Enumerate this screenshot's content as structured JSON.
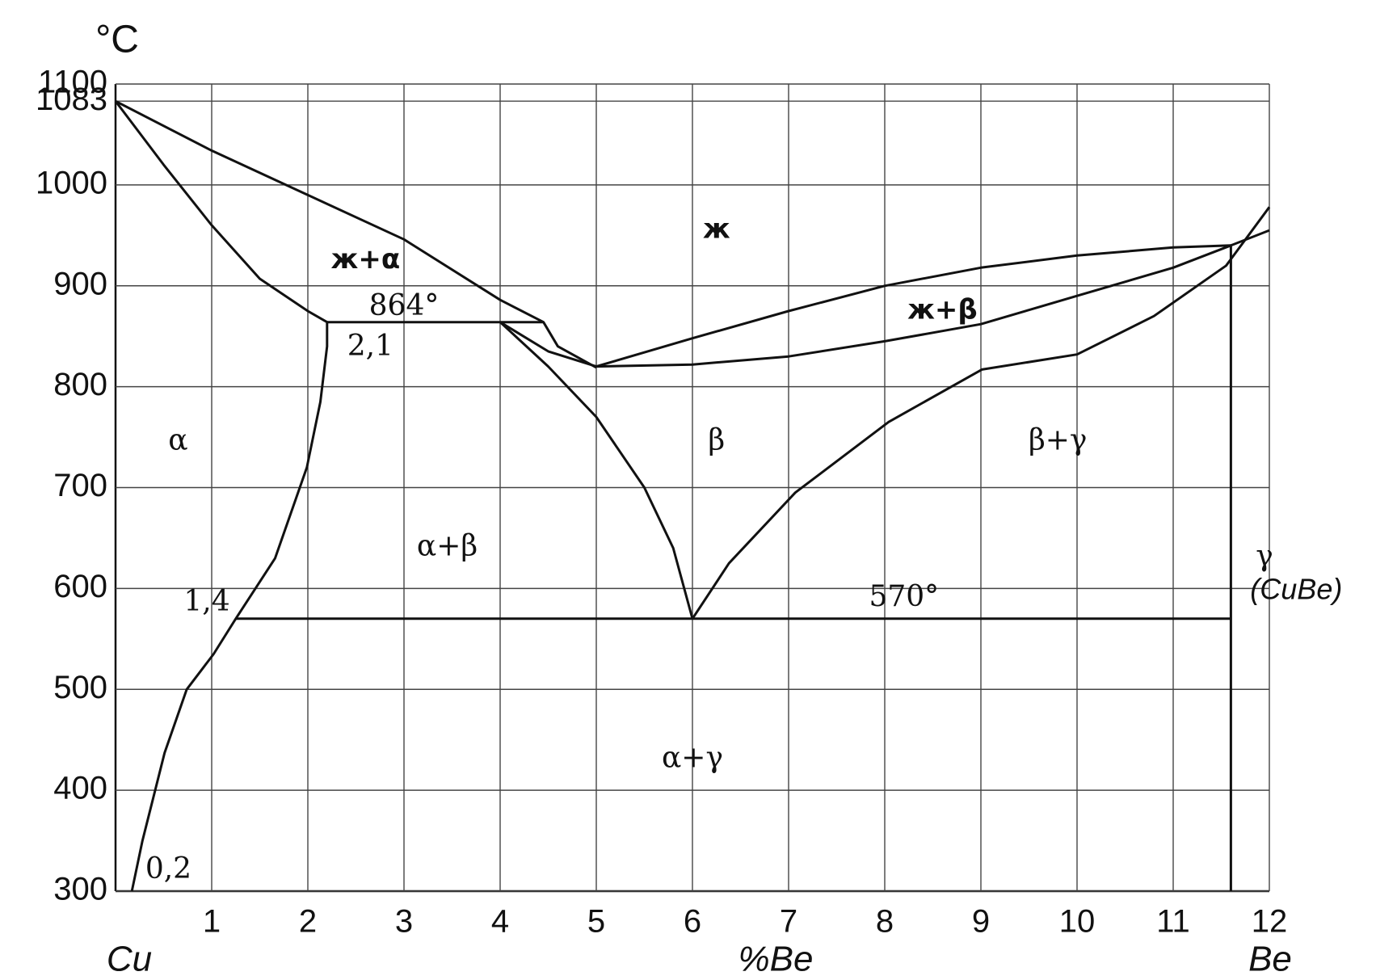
{
  "chart_data": {
    "type": "line",
    "ylabel": "°C",
    "xlabel": "%Be",
    "x_left_label": "Cu",
    "x_right_label": "Be",
    "xlim": [
      0,
      12
    ],
    "ylim": [
      300,
      1100
    ],
    "xticks": [
      1,
      2,
      3,
      4,
      5,
      6,
      7,
      8,
      9,
      10,
      11,
      12
    ],
    "yticks": [
      300,
      400,
      500,
      600,
      700,
      800,
      900,
      1000,
      1083,
      1100
    ],
    "grid": true,
    "color": "#111111",
    "series": [
      {
        "x": [
          0,
          1,
          2,
          3,
          4,
          4.45,
          4.6,
          5
        ],
        "values": [
          1083,
          1034,
          990,
          946,
          886,
          864,
          840,
          819
        ]
      },
      {
        "x": [
          0,
          0.5,
          1,
          1.5,
          2,
          2.2
        ],
        "values": [
          1083,
          1020,
          960,
          907,
          875,
          864
        ]
      },
      {
        "x": [
          2.2,
          4.45
        ],
        "values": [
          864,
          864
        ]
      },
      {
        "x": [
          2.2,
          2.2,
          2.13,
          1.99,
          1.66,
          1.25,
          1.02,
          0.74,
          0.51,
          0.28,
          0.17
        ],
        "values": [
          864,
          840,
          785,
          720,
          630,
          570,
          535,
          500,
          437,
          350,
          300
        ]
      },
      {
        "x": [
          4.0,
          4.5,
          5.0,
          5.5,
          5.8,
          6.0
        ],
        "values": [
          864,
          820,
          770,
          700,
          640,
          570
        ]
      },
      {
        "x": [
          4.0,
          4.5,
          5,
          6,
          7,
          8,
          9,
          10,
          11,
          11.6
        ],
        "values": [
          864,
          835,
          820,
          822,
          830,
          845,
          862,
          890,
          918,
          940
        ]
      },
      {
        "x": [
          5,
          6,
          7,
          8,
          9,
          10,
          11,
          11.6
        ],
        "values": [
          820,
          848,
          875,
          900,
          918,
          930,
          938,
          940
        ]
      },
      {
        "x": [
          6.0,
          6.38,
          7.07,
          8.04,
          9.01,
          10.0,
          10.8,
          11.55,
          12
        ],
        "values": [
          570,
          625,
          695,
          765,
          817,
          832,
          870,
          920,
          978
        ]
      },
      {
        "x": [
          11.6,
          12
        ],
        "values": [
          940,
          955
        ]
      },
      {
        "x": [
          1.25,
          11.6
        ],
        "values": [
          570,
          570
        ]
      },
      {
        "x": [
          11.6,
          11.6
        ],
        "values": [
          300,
          940
        ]
      }
    ],
    "annotations": [
      {
        "text": "ж",
        "bold": true
      },
      {
        "text": "ж+α",
        "bold": true
      },
      {
        "text": "864°"
      },
      {
        "text": "2,1"
      },
      {
        "text": "ж+β",
        "bold": true
      },
      {
        "text": "α"
      },
      {
        "text": "β"
      },
      {
        "text": "α+β"
      },
      {
        "text": "β+γ"
      },
      {
        "text": "α+γ"
      },
      {
        "text": "570°"
      },
      {
        "text": "1,4"
      },
      {
        "text": "0,2"
      },
      {
        "text": "γ"
      },
      {
        "text": "(CuBe)",
        "italic": true
      }
    ]
  }
}
